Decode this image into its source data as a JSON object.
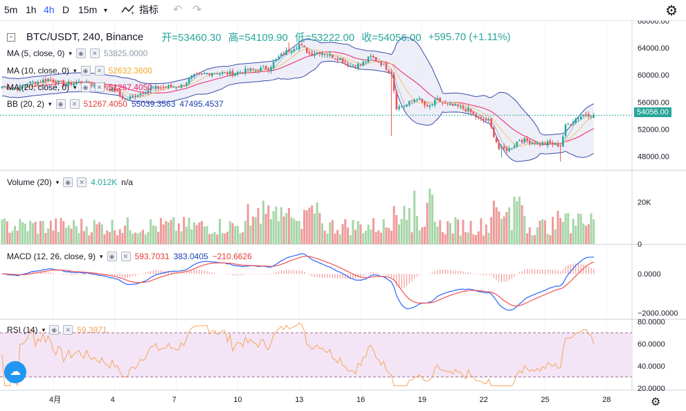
{
  "toolbar": {
    "timeframes": [
      {
        "label": "5m",
        "active": false
      },
      {
        "label": "1h",
        "active": false
      },
      {
        "label": "4h",
        "active": true
      },
      {
        "label": "D",
        "active": false
      },
      {
        "label": "15m",
        "active": false
      }
    ],
    "indicators_label": "指标",
    "undo_icon": "undo-icon",
    "redo_icon": "redo-icon",
    "settings_icon": "gear-icon"
  },
  "header": {
    "symbol": "BTC/USDT, 240, Binance",
    "open": "开=53460.30",
    "high": "高=54109.90",
    "low": "低=53222.00",
    "close": "收=54056.00",
    "change": "+595.70 (+1.11%)"
  },
  "legends": {
    "ma5": {
      "name": "MA (5, close, 0)",
      "value": "53825.0000",
      "color": "#8f9ba8"
    },
    "ma10": {
      "name": "MA (10, close, 0)",
      "value": "52632.3600",
      "color": "#f5a623"
    },
    "ma20": {
      "name": "MA (20, close, 0)",
      "value": "51267.4050",
      "color": "#e91e63"
    },
    "bb": {
      "name": "BB (20, 2)",
      "values": [
        "51267.4050",
        "55039.3563",
        "47495.4537"
      ],
      "colors": [
        "#e53935",
        "#1e40af",
        "#1e40af"
      ]
    },
    "volume": {
      "name": "Volume (20)",
      "value": "4.012K",
      "extra": "n/a"
    },
    "macd": {
      "name": "MACD (12, 26, close, 9)",
      "values": [
        "593.7031",
        "383.0405",
        "−210.6626"
      ],
      "colors": [
        "#e53935",
        "#1e40af",
        "#e53935"
      ]
    },
    "rsi": {
      "name": "RSI (14)",
      "value": "59.3971"
    }
  },
  "price_label": "54056.00",
  "colors": {
    "up": "#26a69a",
    "down": "#ef5350",
    "vol_up": "#a5d6a7",
    "vol_down": "#ef9a9a",
    "bb_fill": "#e8eaf6",
    "rsi_band": "#f3e5f5",
    "macd_line": "#2962ff",
    "signal_line": "#ef5350",
    "rsi_line": "#f7a35c",
    "ma_pink": "#ec407a",
    "ma_orange": "#f5c26b"
  },
  "icons": {
    "logo": "tradingview-logo-icon",
    "gear_bottom": "gear-icon"
  },
  "chart_data": {
    "type": "candlestick",
    "x_ticks": [
      "4月",
      "4",
      "7",
      "10",
      "13",
      "16",
      "19",
      "22",
      "25",
      "28"
    ],
    "panels": [
      {
        "name": "price",
        "ylim": [
          46000,
          68000
        ],
        "ticks": [
          "68000.00",
          "64000.00",
          "60000.00",
          "56000.00",
          "52000.00",
          "48000.00"
        ],
        "last_price": 54056
      },
      {
        "name": "volume",
        "ylim": [
          0,
          35000
        ],
        "ticks": [
          "20K",
          "0"
        ]
      },
      {
        "name": "macd",
        "ylim": [
          -2300,
          1500
        ],
        "ticks": [
          "0.0000",
          "−2000.0000"
        ]
      },
      {
        "name": "rsi",
        "ylim": [
          18,
          82
        ],
        "ticks": [
          "80.0000",
          "60.0000",
          "40.0000",
          "20.0000"
        ],
        "bands": [
          70,
          30
        ]
      }
    ],
    "close_anchors": [
      [
        0,
        58300
      ],
      [
        6,
        58000
      ],
      [
        10,
        58800
      ],
      [
        14,
        59000
      ],
      [
        18,
        59400
      ],
      [
        24,
        58600
      ],
      [
        30,
        58900
      ],
      [
        38,
        58400
      ],
      [
        44,
        57700
      ],
      [
        48,
        56300
      ],
      [
        52,
        57000
      ],
      [
        58,
        58000
      ],
      [
        64,
        58200
      ],
      [
        70,
        58400
      ],
      [
        74,
        59700
      ],
      [
        82,
        60400
      ],
      [
        90,
        60200
      ],
      [
        96,
        60700
      ],
      [
        104,
        61000
      ],
      [
        108,
        62600
      ],
      [
        112,
        63700
      ],
      [
        116,
        64500
      ],
      [
        120,
        63200
      ],
      [
        124,
        63400
      ],
      [
        128,
        62900
      ],
      [
        132,
        62400
      ],
      [
        136,
        61400
      ],
      [
        140,
        61500
      ],
      [
        144,
        62700
      ],
      [
        148,
        61700
      ],
      [
        152,
        60400
      ],
      [
        154,
        55200
      ],
      [
        158,
        55600
      ],
      [
        162,
        56700
      ],
      [
        166,
        55100
      ],
      [
        170,
        56300
      ],
      [
        174,
        55500
      ],
      [
        178,
        55300
      ],
      [
        182,
        54800
      ],
      [
        186,
        53500
      ],
      [
        190,
        53200
      ],
      [
        194,
        49100
      ],
      [
        198,
        49000
      ],
      [
        202,
        50500
      ],
      [
        206,
        50200
      ],
      [
        210,
        49800
      ],
      [
        214,
        49900
      ],
      [
        218,
        49600
      ],
      [
        220,
        52400
      ],
      [
        224,
        53600
      ],
      [
        228,
        54300
      ],
      [
        231,
        54056
      ]
    ],
    "candle_count": 232
  }
}
